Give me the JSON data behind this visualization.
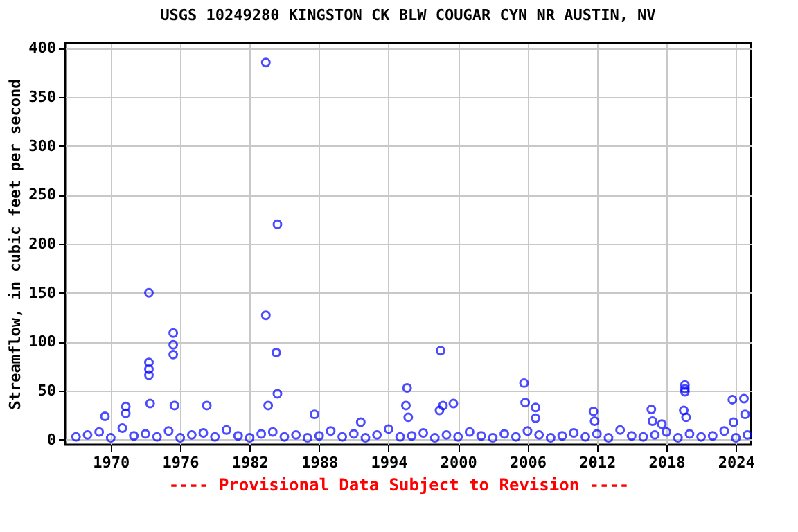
{
  "chart_data": {
    "type": "scatter",
    "title": "USGS 10249280 KINGSTON CK BLW COUGAR CYN NR AUSTIN, NV",
    "ylabel": "Streamflow, in cubic feet per second",
    "annotations": [
      "---- Provisional Data Subject to Revision ----"
    ],
    "xlim": [
      1966.06,
      2025.3
    ],
    "xticks": [
      1970,
      1976,
      1982,
      1988,
      1994,
      2000,
      2006,
      2012,
      2018,
      2024
    ],
    "ylim": [
      -5,
      405
    ],
    "yticks": [
      0,
      50,
      100,
      150,
      200,
      250,
      300,
      350,
      400
    ],
    "grid": true,
    "marker": "circle",
    "series": [
      {
        "color": "#0000ff",
        "x": [
          1967,
          1968,
          1969,
          1970,
          1971,
          1972,
          1973,
          1974,
          1975,
          1976,
          1977,
          1978,
          1979,
          1980,
          1981,
          1982,
          1983,
          1984,
          1985,
          1986,
          1987,
          1988,
          1989,
          1990,
          1991,
          1992,
          1993,
          1994,
          1995,
          1996,
          1997,
          1998,
          1999,
          2000,
          2001,
          2002,
          2003,
          2004,
          2005,
          2006,
          2007,
          2008,
          2009,
          2010,
          2011,
          2012,
          2013,
          2014,
          2015,
          2016,
          2017,
          2018,
          2019,
          2020,
          2021,
          2022,
          2023,
          2024,
          2025,
          1983.4,
          1983.4,
          1984.4,
          1984.3,
          1984.4,
          1983.6,
          1973.3,
          1973.3,
          1973.3,
          1973.3,
          1975.4,
          1975.4,
          1975.4,
          1975.5,
          1978.3,
          1971.3,
          1971.3,
          1969.5,
          1973.4,
          1987.6,
          1991.6,
          1995.6,
          1995.5,
          1995.7,
          1998.5,
          1998.4,
          1998.7,
          1999.6,
          2005.7,
          2005.8,
          2006.7,
          2006.7,
          2011.7,
          2011.8,
          2016.7,
          2016.8,
          2017.6,
          2019.6,
          2019.6,
          2019.6,
          2019.5,
          2019.7,
          2023.7,
          2024.7,
          2024.8,
          2023.8
        ],
        "values": [
          3,
          5,
          8,
          2,
          12,
          4,
          6,
          3,
          9,
          2,
          5,
          7,
          3,
          10,
          4,
          2,
          6,
          8,
          3,
          5,
          2,
          4,
          9,
          3,
          6,
          2,
          5,
          11,
          3,
          4,
          7,
          2,
          5,
          3,
          8,
          4,
          2,
          6,
          3,
          9,
          5,
          2,
          4,
          7,
          3,
          6,
          2,
          10,
          4,
          3,
          5,
          8,
          2,
          6,
          3,
          4,
          9,
          2,
          5,
          385,
          127,
          220,
          89,
          47,
          35,
          150,
          79,
          72,
          66,
          109,
          97,
          87,
          35,
          35,
          34,
          27,
          24,
          37,
          26,
          18,
          53,
          35,
          23,
          91,
          30,
          35,
          37,
          58,
          38,
          33,
          22,
          29,
          19,
          31,
          19,
          16,
          56,
          52,
          49,
          30,
          23,
          41,
          42,
          26,
          18
        ]
      }
    ]
  }
}
